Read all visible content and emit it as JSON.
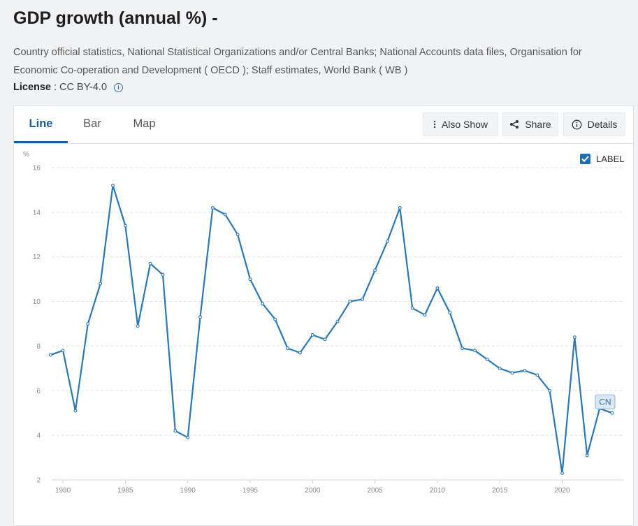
{
  "page": {
    "title": "GDP growth (annual %) -",
    "source_text": "Country official statistics, National Statistical Organizations and/or Central Banks; National Accounts data files, Organisation for Economic Co-operation and Development ( OECD ); Staff estimates, World Bank ( WB )",
    "license_label": "License",
    "license_value": ": CC BY-4.0",
    "info_icon": "i"
  },
  "tabs": [
    {
      "label": "Line",
      "active": true
    },
    {
      "label": "Bar",
      "active": false
    },
    {
      "label": "Map",
      "active": false
    }
  ],
  "toolbar": {
    "also_show": "Also Show",
    "share": "Share",
    "details": "Details"
  },
  "label_toggle": {
    "label": "LABEL",
    "checked": true
  },
  "colors": {
    "line": "#2a78b5",
    "accent": "#1f6fb5",
    "tag_bg": "#dbe9f6",
    "tag_border": "#8fb4d8"
  },
  "chart_data": {
    "type": "line",
    "ylabel": "%",
    "ylim": [
      2,
      16
    ],
    "yticks": [
      2,
      4,
      6,
      8,
      10,
      12,
      14,
      16
    ],
    "xlim": [
      1979.1,
      2024.9
    ],
    "xticks": [
      1980,
      1985,
      1990,
      1995,
      2000,
      2005,
      2010,
      2015,
      2020
    ],
    "grid": true,
    "series": [
      {
        "name": "CN",
        "x": [
          1979,
          1980,
          1981,
          1982,
          1983,
          1984,
          1985,
          1986,
          1987,
          1988,
          1989,
          1990,
          1991,
          1992,
          1993,
          1994,
          1995,
          1996,
          1997,
          1998,
          1999,
          2000,
          2001,
          2002,
          2003,
          2004,
          2005,
          2006,
          2007,
          2008,
          2009,
          2010,
          2011,
          2012,
          2013,
          2014,
          2015,
          2016,
          2017,
          2018,
          2019,
          2020,
          2021,
          2022,
          2023,
          2024
        ],
        "values": [
          7.6,
          7.8,
          5.1,
          9.0,
          10.8,
          15.2,
          13.4,
          8.9,
          11.7,
          11.2,
          4.2,
          3.9,
          9.3,
          14.2,
          13.9,
          13.0,
          11.0,
          9.9,
          9.2,
          7.9,
          7.7,
          8.5,
          8.3,
          9.1,
          10.0,
          10.1,
          11.4,
          12.7,
          14.2,
          9.7,
          9.4,
          10.6,
          9.5,
          7.9,
          7.8,
          7.4,
          7.0,
          6.8,
          6.9,
          6.7,
          6.0,
          2.3,
          8.4,
          3.1,
          5.2,
          5.0
        ]
      }
    ]
  }
}
